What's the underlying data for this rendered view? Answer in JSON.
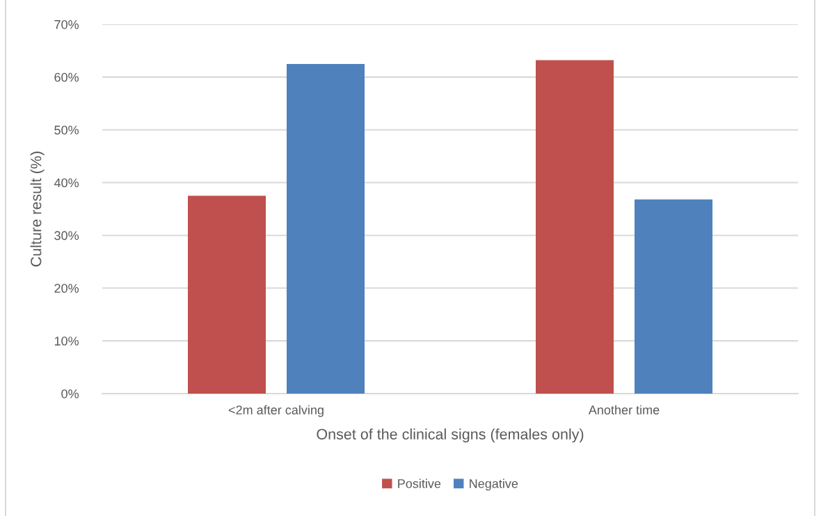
{
  "chart_data": {
    "type": "bar",
    "xlabel": "Onset of the clinical signs (females only)",
    "ylabel": "Culture result (%)",
    "categories": [
      "<2m after calving",
      "Another time"
    ],
    "series": [
      {
        "name": "Positive",
        "color": "#c0504d",
        "values": [
          37.5,
          63.2
        ]
      },
      {
        "name": "Negative",
        "color": "#4f81bd",
        "values": [
          62.5,
          36.8
        ]
      }
    ],
    "ylim": [
      0,
      70
    ],
    "yticks": [
      {
        "value": 0,
        "label": "0%"
      },
      {
        "value": 10,
        "label": "10%"
      },
      {
        "value": 20,
        "label": "20%"
      },
      {
        "value": 30,
        "label": "30%"
      },
      {
        "value": 40,
        "label": "40%"
      },
      {
        "value": 50,
        "label": "50%"
      },
      {
        "value": 60,
        "label": "60%"
      },
      {
        "value": 70,
        "label": "70%"
      }
    ],
    "grid": "y",
    "legend": "bottom"
  }
}
